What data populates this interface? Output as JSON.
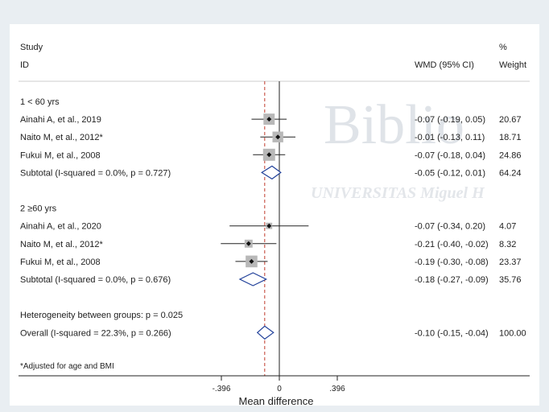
{
  "watermark": {
    "big": "Biblio",
    "small": "UNIVERSITAS Miguel H"
  },
  "headers": {
    "study": "Study",
    "id": "ID",
    "wmd": "WMD (95% CI)",
    "pct": "%",
    "weight": "Weight"
  },
  "footnote": "*Adjusted for age and BMI",
  "colors": {
    "background": "#e9eef2",
    "panel": "#ffffff",
    "box": "#b8b8b8",
    "diamond": "#1f3f99",
    "overall_line": "#c0392b"
  },
  "chart_data": {
    "type": "forest",
    "xlabel": "Mean difference",
    "xticks": [
      -0.396,
      0,
      0.396
    ],
    "xtick_labels": [
      "-.396",
      "0",
      ".396"
    ],
    "xlim": [
      -0.54,
      0.54
    ],
    "null_line": 0,
    "overall_line": -0.1,
    "rows": [
      {
        "kind": "group",
        "label": "1  < 60 yrs"
      },
      {
        "kind": "study",
        "label": "Ainahi A, et al., 2019",
        "est": -0.07,
        "lo": -0.19,
        "hi": 0.05,
        "ci": "-0.07 (-0.19, 0.05)",
        "weight": "20.67",
        "w": 20.67
      },
      {
        "kind": "study",
        "label": "Naito M, et al., 2012*",
        "est": -0.01,
        "lo": -0.13,
        "hi": 0.11,
        "ci": "-0.01 (-0.13, 0.11)",
        "weight": "18.71",
        "w": 18.71
      },
      {
        "kind": "study",
        "label": "Fukui M, et al., 2008",
        "est": -0.07,
        "lo": -0.18,
        "hi": 0.04,
        "ci": "-0.07 (-0.18, 0.04)",
        "weight": "24.86",
        "w": 24.86
      },
      {
        "kind": "subtotal",
        "label": "Subtotal  (I-squared = 0.0%, p = 0.727)",
        "est": -0.05,
        "lo": -0.12,
        "hi": 0.01,
        "ci": "-0.05 (-0.12, 0.01)",
        "weight": "64.24"
      },
      {
        "kind": "gap"
      },
      {
        "kind": "group",
        "label": "2  ≥60 yrs"
      },
      {
        "kind": "study",
        "label": "Ainahi A, et al., 2020",
        "est": -0.07,
        "lo": -0.34,
        "hi": 0.2,
        "ci": "-0.07 (-0.34, 0.20)",
        "weight": "4.07",
        "w": 4.07
      },
      {
        "kind": "study",
        "label": "Naito M, et al., 2012*",
        "est": -0.21,
        "lo": -0.4,
        "hi": -0.02,
        "ci": "-0.21 (-0.40, -0.02)",
        "weight": "8.32",
        "w": 8.32
      },
      {
        "kind": "study",
        "label": "Fukui M, et al., 2008",
        "est": -0.19,
        "lo": -0.3,
        "hi": -0.08,
        "ci": "-0.19 (-0.30, -0.08)",
        "weight": "23.37",
        "w": 23.37
      },
      {
        "kind": "subtotal",
        "label": "Subtotal  (I-squared = 0.0%, p = 0.676)",
        "est": -0.18,
        "lo": -0.27,
        "hi": -0.09,
        "ci": "-0.18 (-0.27, -0.09)",
        "weight": "35.76"
      },
      {
        "kind": "gap"
      },
      {
        "kind": "note",
        "label": "Heterogeneity between groups: p = 0.025"
      },
      {
        "kind": "subtotal",
        "label": "Overall  (I-squared = 22.3%, p = 0.266)",
        "est": -0.1,
        "lo": -0.15,
        "hi": -0.04,
        "ci": "-0.10 (-0.15, -0.04)",
        "weight": "100.00"
      }
    ]
  }
}
